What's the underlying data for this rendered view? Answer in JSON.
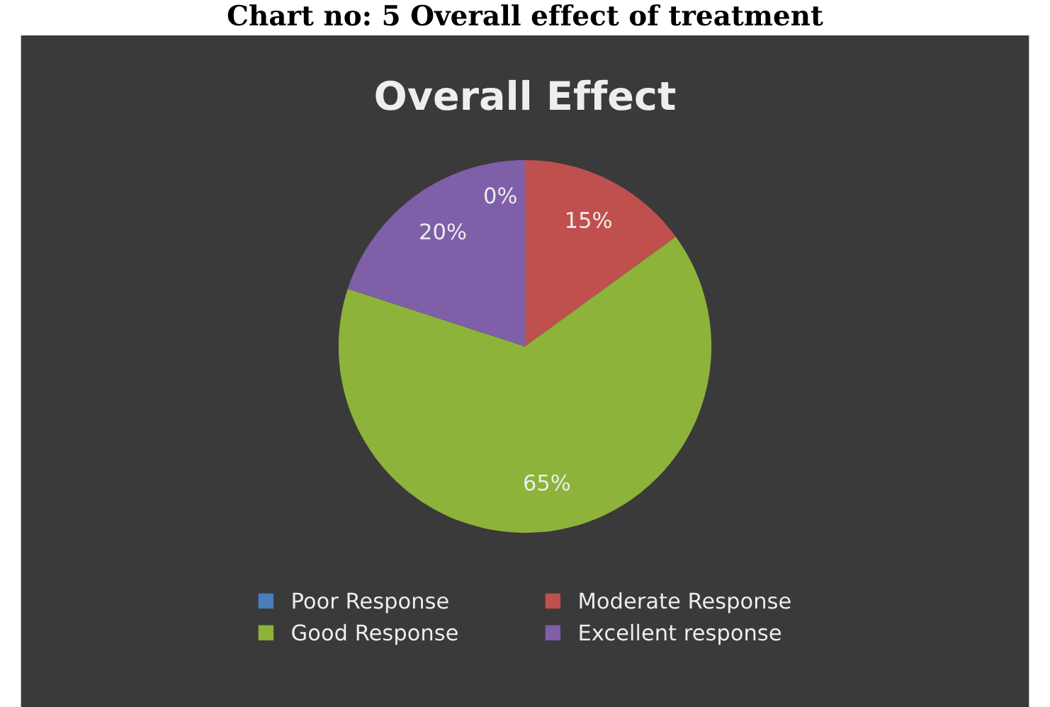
{
  "chart_data": {
    "type": "pie",
    "title": "Overall Effect",
    "annotations": [
      "Chart no: 5 Overall effect of treatment"
    ],
    "categories": [
      "Poor Response",
      "Moderate Response",
      "Good Response",
      "Excellent response"
    ],
    "values": [
      0,
      15,
      65,
      20
    ],
    "colors": [
      "#4a7ebb",
      "#c0504d",
      "#8db33a",
      "#7f5fa8"
    ],
    "value_labels": [
      "0%",
      "15%",
      "65%",
      "20%"
    ],
    "legend": "bottom"
  }
}
